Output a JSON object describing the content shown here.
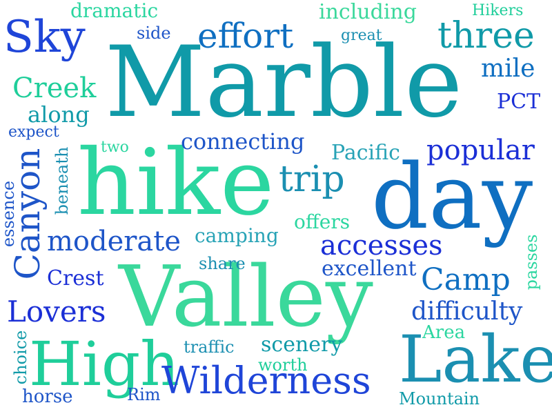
{
  "words": {
    "marble": "Marble",
    "hike": "hike",
    "day": "day",
    "valley": "Valley",
    "lake": "Lake",
    "high": "High",
    "wilderness": "Wilderness",
    "sky": "Sky",
    "effort": "effort",
    "three": "three",
    "dramatic": "dramatic",
    "including": "including",
    "hikers": "Hikers",
    "side": "side",
    "great": "great",
    "mile": "mile",
    "pct": "PCT",
    "creek": "Creek",
    "along": "along",
    "expect": "expect",
    "two": "two",
    "connecting": "connecting",
    "pacific": "Pacific",
    "popular": "popular",
    "trip": "trip",
    "canyon": "Canyon",
    "beneath": "beneath",
    "essence": "essence",
    "moderate": "moderate",
    "camping": "camping",
    "offers": "offers",
    "accesses": "accesses",
    "share": "share",
    "excellent": "excellent",
    "crest": "Crest",
    "camp": "Camp",
    "passes": "passes",
    "lovers": "Lovers",
    "difficulty": "difficulty",
    "area": "Area",
    "choice": "choice",
    "traffic": "traffic",
    "scenery": "scenery",
    "worth": "worth",
    "horse": "horse",
    "rim": "Rim",
    "mountain": "Mountain"
  }
}
